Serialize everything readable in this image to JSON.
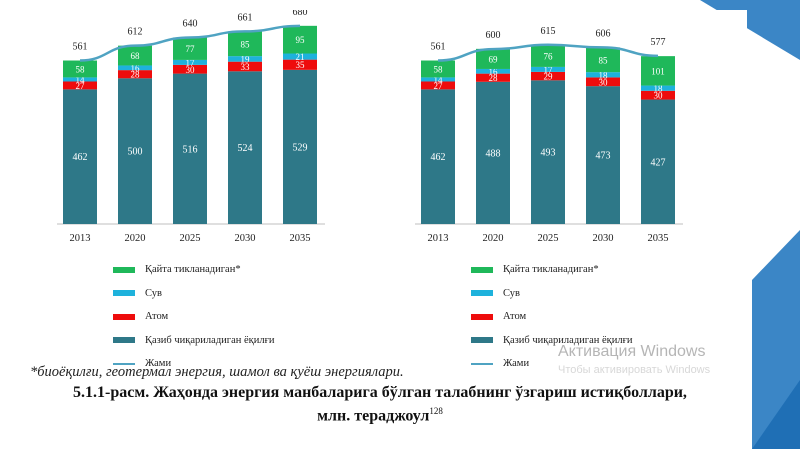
{
  "legend": {
    "renewable": "Қайта тикланадиган*",
    "hydro": "Сув",
    "nuclear": "Атом",
    "fossil": "Қазиб чиқариладиган ёқилғи",
    "total": "Жами"
  },
  "colors": {
    "fossil": "#2e7888",
    "nuclear": "#ee0c0c",
    "hydro": "#1eb2dc",
    "renewable": "#1fb85a",
    "total": "#4fa3c2",
    "decor_blue": "#3b86c6"
  },
  "chart_data": [
    {
      "type": "bar",
      "stacked": true,
      "categories": [
        "2013",
        "2020",
        "2025",
        "2030",
        "2035"
      ],
      "series": [
        {
          "name": "Қазиб чиқариладиган ёқилғи",
          "values": [
            462,
            500,
            516,
            524,
            529
          ]
        },
        {
          "name": "Атом",
          "values": [
            27,
            28,
            30,
            33,
            35
          ]
        },
        {
          "name": "Сув",
          "values": [
            14,
            16,
            17,
            19,
            21
          ]
        },
        {
          "name": "Қайта тикланадиган*",
          "values": [
            58,
            68,
            77,
            85,
            95
          ]
        }
      ],
      "totals": {
        "name": "Жами",
        "values": [
          561,
          612,
          640,
          661,
          680
        ]
      },
      "ylim": [
        0,
        700
      ],
      "legend_position": "bottom"
    },
    {
      "type": "bar",
      "stacked": true,
      "categories": [
        "2013",
        "2020",
        "2025",
        "2030",
        "2035"
      ],
      "series": [
        {
          "name": "Қазиб чиқариладиган ёқилғи",
          "values": [
            462,
            488,
            493,
            473,
            427
          ]
        },
        {
          "name": "Атом",
          "values": [
            27,
            28,
            29,
            30,
            30
          ]
        },
        {
          "name": "Сув",
          "values": [
            14,
            16,
            17,
            18,
            18
          ]
        },
        {
          "name": "Қайта тикланадиган*",
          "values": [
            58,
            69,
            76,
            85,
            101
          ]
        }
      ],
      "totals": {
        "name": "Жами",
        "values": [
          561,
          600,
          615,
          606,
          577
        ]
      },
      "ylim": [
        0,
        700
      ],
      "legend_position": "bottom"
    }
  ],
  "footnote": "*биоёқилғи, геотермал энергия, шамол ва қуёш энергиялари.",
  "caption": {
    "line1": "5.1.1-расм. Жаҳонда энергия манбаларига бўлган талабнинг ўзгариш истиқболлари,",
    "line2": "млн. тераджоул",
    "ref": "128"
  },
  "watermark": {
    "title": "Активация Windows",
    "subtitle": "Чтобы активировать Windows"
  }
}
